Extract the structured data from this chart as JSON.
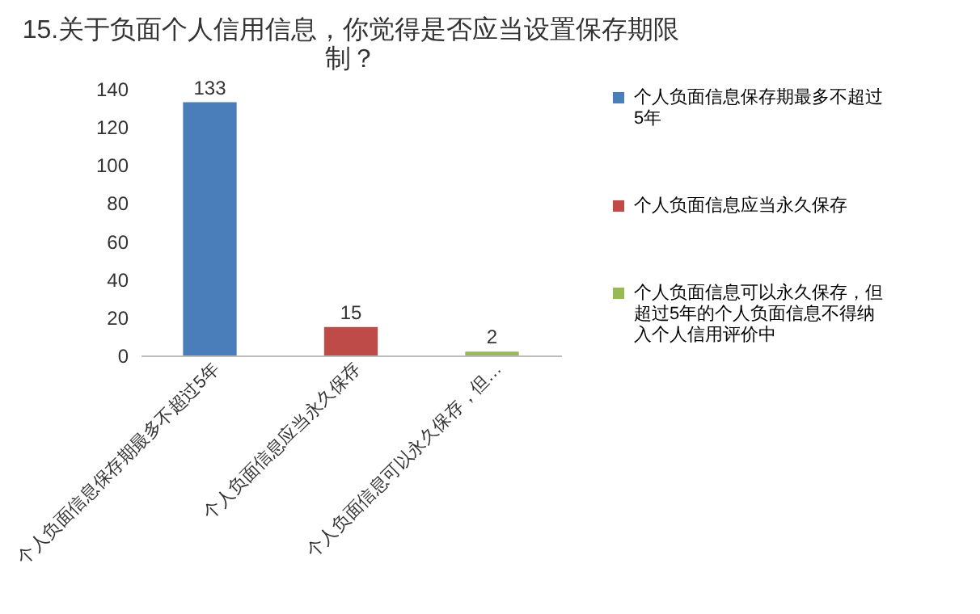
{
  "chart_data": {
    "type": "bar",
    "title": "15.关于负面个人信用信息，你觉得是否应当设置保存期限制？",
    "categories": [
      "个人负面信息保存期最多不超过5年",
      "个人负面信息应当永久保存",
      "个人负面信息可以永久保存，但…"
    ],
    "series": [
      {
        "name": "个人负面信息保存期最多不超过5年",
        "color": "#4a7ebb",
        "values": [
          133,
          null,
          null
        ]
      },
      {
        "name": "个人负面信息应当永久保存",
        "color": "#be4b48",
        "values": [
          null,
          15,
          null
        ]
      },
      {
        "name": "个人负面信息可以永久保存，但超过5年的个人负面信息不得纳入个人信用评价中",
        "color": "#98b954",
        "values": [
          null,
          null,
          2
        ]
      }
    ],
    "stacked": true,
    "ylim": [
      0,
      140
    ],
    "yticks": [
      0,
      20,
      40,
      60,
      80,
      100,
      120,
      140
    ],
    "data_labels": true,
    "legend": "right",
    "grid": false
  }
}
